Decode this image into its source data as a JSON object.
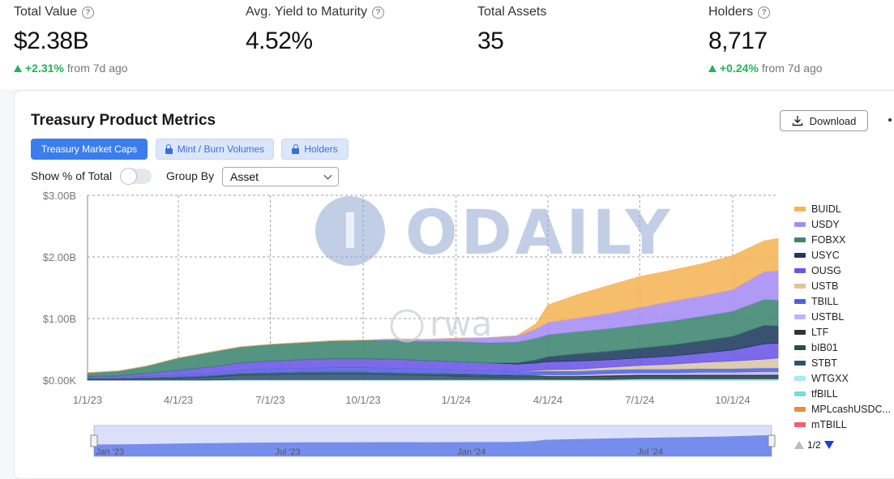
{
  "stats": [
    {
      "label": "Total Value",
      "value": "$2.38B",
      "change_pct": "+2.31%",
      "change_text": "from 7d ago",
      "has_info": true
    },
    {
      "label": "Avg. Yield to Maturity",
      "value": "4.52%",
      "has_info": true
    },
    {
      "label": "Total Assets",
      "value": "35",
      "has_info": false
    },
    {
      "label": "Holders",
      "value": "8,717",
      "change_pct": "+0.24%",
      "change_text": "from 7d ago",
      "has_info": true
    }
  ],
  "panel": {
    "title": "Treasury Product Metrics",
    "download_label": "Download",
    "tabs": [
      {
        "label": "Treasury Market Caps",
        "active": true,
        "locked": false
      },
      {
        "label": "Mint / Burn Volumes",
        "active": false,
        "locked": true
      },
      {
        "label": "Holders",
        "active": false,
        "locked": true
      }
    ],
    "show_pct_label": "Show % of Total",
    "show_pct_value": false,
    "group_by_label": "Group By",
    "group_by_value": "Asset",
    "pager": "1/2"
  },
  "watermarks": {
    "main": "ODAILY",
    "secondary": "rwa"
  },
  "colors": {
    "accent": "#3b7ded",
    "positive": "#22b35e"
  },
  "chart_data": {
    "type": "area",
    "stacked": true,
    "y_ticks": [
      "$0.00K",
      "$1.00B",
      "$2.00B",
      "$3.00B"
    ],
    "ylim": [
      0,
      3.0
    ],
    "y_unit": "$B",
    "x_ticks": [
      "1/1/23",
      "4/1/23",
      "7/1/23",
      "10/1/23",
      "1/1/24",
      "4/1/24",
      "7/1/24",
      "10/1/24"
    ],
    "navigator_ticks": [
      "Jan '23",
      "Jul '23",
      "Jan '24",
      "Jul '24"
    ],
    "grid": true,
    "legend_position": "right",
    "x": [
      "2023-01-01",
      "2023-02-01",
      "2023-03-01",
      "2023-04-01",
      "2023-05-01",
      "2023-06-01",
      "2023-07-01",
      "2023-08-01",
      "2023-09-01",
      "2023-10-01",
      "2023-11-01",
      "2023-12-01",
      "2024-01-01",
      "2024-02-01",
      "2024-03-01",
      "2024-03-20",
      "2024-04-01",
      "2024-05-01",
      "2024-06-01",
      "2024-07-01",
      "2024-08-01",
      "2024-09-01",
      "2024-10-01",
      "2024-11-01",
      "2024-11-15"
    ],
    "series": [
      {
        "name": "BUIDL",
        "color": "#f5b556",
        "values": [
          0,
          0,
          0,
          0,
          0,
          0,
          0,
          0,
          0,
          0,
          0,
          0,
          0,
          0,
          0,
          0.08,
          0.28,
          0.38,
          0.45,
          0.5,
          0.5,
          0.52,
          0.55,
          0.5,
          0.52
        ]
      },
      {
        "name": "USDY",
        "color": "#a68cf5",
        "values": [
          0,
          0,
          0,
          0,
          0,
          0,
          0,
          0,
          0,
          0,
          0.02,
          0.03,
          0.05,
          0.08,
          0.1,
          0.15,
          0.2,
          0.22,
          0.25,
          0.28,
          0.32,
          0.33,
          0.35,
          0.45,
          0.48
        ]
      },
      {
        "name": "FOBXX",
        "color": "#3c8570",
        "values": [
          0.06,
          0.08,
          0.12,
          0.2,
          0.24,
          0.26,
          0.27,
          0.28,
          0.29,
          0.3,
          0.31,
          0.31,
          0.33,
          0.33,
          0.34,
          0.35,
          0.36,
          0.36,
          0.37,
          0.38,
          0.39,
          0.4,
          0.41,
          0.42,
          0.42
        ]
      },
      {
        "name": "USYC",
        "color": "#1f3a5f",
        "values": [
          0,
          0,
          0,
          0,
          0,
          0,
          0,
          0,
          0,
          0,
          0,
          0,
          0,
          0,
          0.02,
          0.05,
          0.08,
          0.12,
          0.14,
          0.16,
          0.18,
          0.2,
          0.22,
          0.3,
          0.28
        ]
      },
      {
        "name": "OUSG",
        "color": "#6a55e8",
        "values": [
          0.02,
          0.03,
          0.05,
          0.08,
          0.1,
          0.12,
          0.13,
          0.14,
          0.15,
          0.15,
          0.15,
          0.14,
          0.14,
          0.13,
          0.12,
          0.12,
          0.13,
          0.13,
          0.12,
          0.12,
          0.13,
          0.15,
          0.18,
          0.25,
          0.24
        ]
      },
      {
        "name": "USTB",
        "color": "#d8c6a0",
        "values": [
          0,
          0,
          0,
          0,
          0,
          0,
          0,
          0,
          0,
          0,
          0,
          0,
          0,
          0,
          0,
          0.01,
          0.02,
          0.03,
          0.04,
          0.06,
          0.08,
          0.1,
          0.12,
          0.14,
          0.16
        ]
      },
      {
        "name": "TBILL",
        "color": "#4a63e0",
        "values": [
          0.01,
          0.01,
          0.02,
          0.03,
          0.04,
          0.05,
          0.06,
          0.06,
          0.07,
          0.07,
          0.07,
          0.07,
          0.06,
          0.06,
          0.06,
          0.06,
          0.06,
          0.06,
          0.06,
          0.06,
          0.06,
          0.06,
          0.06,
          0.06,
          0.06
        ]
      },
      {
        "name": "USTBL",
        "color": "#c3b4f7",
        "values": [
          0,
          0,
          0,
          0,
          0,
          0,
          0,
          0,
          0,
          0,
          0,
          0,
          0,
          0,
          0,
          0.01,
          0.02,
          0.02,
          0.03,
          0.03,
          0.03,
          0.04,
          0.04,
          0.05,
          0.05
        ]
      },
      {
        "name": "LTF",
        "color": "#333333",
        "values": [
          0,
          0,
          0,
          0,
          0,
          0,
          0,
          0,
          0,
          0,
          0,
          0,
          0.01,
          0.01,
          0.01,
          0.01,
          0.01,
          0.01,
          0.02,
          0.02,
          0.02,
          0.02,
          0.02,
          0.02,
          0.02
        ]
      },
      {
        "name": "bIB01",
        "color": "#2f4f3f",
        "values": [
          0.02,
          0.02,
          0.02,
          0.02,
          0.02,
          0.03,
          0.03,
          0.03,
          0.03,
          0.03,
          0.03,
          0.03,
          0.03,
          0.03,
          0.03,
          0.03,
          0.03,
          0.03,
          0.03,
          0.03,
          0.03,
          0.03,
          0.03,
          0.03,
          0.03
        ]
      },
      {
        "name": "STBT",
        "color": "#2c5278",
        "values": [
          0.01,
          0.01,
          0.02,
          0.03,
          0.05,
          0.07,
          0.08,
          0.09,
          0.09,
          0.09,
          0.08,
          0.07,
          0.05,
          0.04,
          0.03,
          0.03,
          0.02,
          0.02,
          0.02,
          0.02,
          0.02,
          0.02,
          0.02,
          0.02,
          0.02
        ]
      },
      {
        "name": "WTGXX",
        "color": "#a7ecf2",
        "values": [
          0,
          0,
          0,
          0,
          0,
          0,
          0,
          0,
          0,
          0,
          0,
          0,
          0,
          0,
          0,
          0,
          0,
          0,
          0,
          0.01,
          0.01,
          0.01,
          0.01,
          0.01,
          0.01
        ]
      },
      {
        "name": "tfBILL",
        "color": "#6ee0dd",
        "values": [
          0,
          0,
          0,
          0,
          0,
          0.01,
          0.01,
          0.01,
          0.01,
          0.01,
          0.01,
          0.01,
          0.01,
          0.01,
          0.01,
          0.01,
          0.01,
          0.01,
          0.01,
          0.01,
          0.01,
          0.01,
          0.01,
          0.01,
          0.01
        ]
      },
      {
        "name": "MPLcashUSDC...",
        "color": "#f08a3c",
        "values": [
          0,
          0,
          0,
          0,
          0,
          0,
          0,
          0,
          0,
          0,
          0,
          0,
          0,
          0,
          0,
          0,
          0,
          0,
          0,
          0,
          0,
          0,
          0,
          0,
          0
        ]
      },
      {
        "name": "mTBILL",
        "color": "#f06070",
        "values": [
          0,
          0,
          0,
          0,
          0,
          0,
          0,
          0,
          0,
          0,
          0,
          0,
          0,
          0,
          0,
          0,
          0,
          0,
          0,
          0,
          0,
          0,
          0,
          0,
          0
        ]
      }
    ]
  }
}
